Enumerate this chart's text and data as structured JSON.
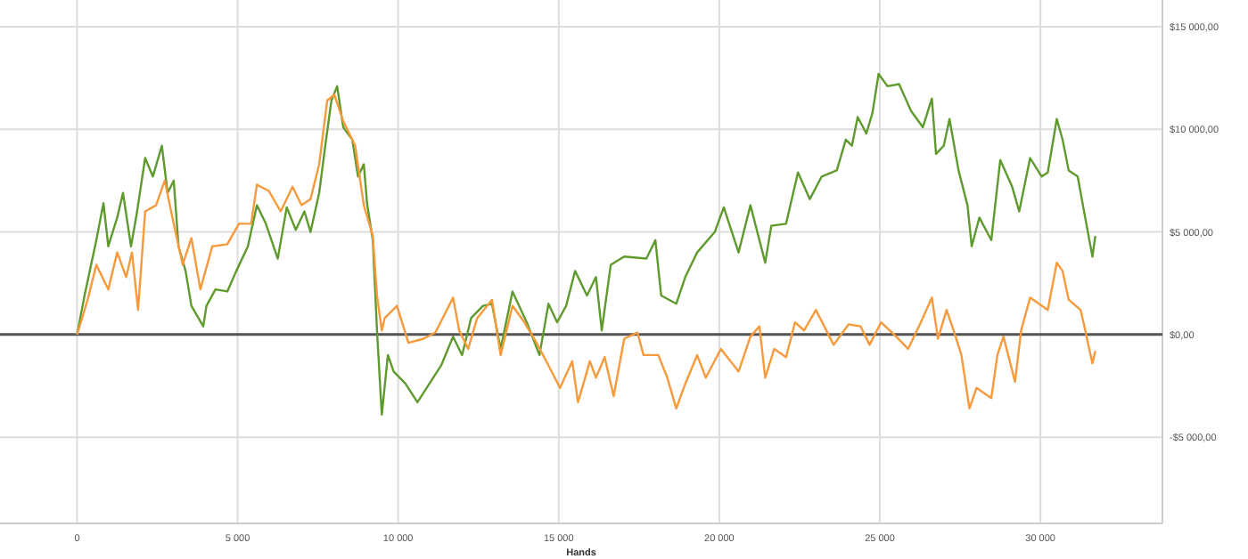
{
  "chart_data": {
    "type": "line",
    "xlabel": "Hands",
    "xlim": [
      -2400,
      33800
    ],
    "xticks": [
      {
        "value": 0,
        "label": "0"
      },
      {
        "value": 5000,
        "label": "5 000"
      },
      {
        "value": 10000,
        "label": "10 000"
      },
      {
        "value": 15000,
        "label": "15 000"
      },
      {
        "value": 20000,
        "label": "20 000"
      },
      {
        "value": 25000,
        "label": "25 000"
      },
      {
        "value": 30000,
        "label": "30 000"
      }
    ],
    "ylim": [
      -9200,
      16300
    ],
    "yticks": [
      {
        "value": -5000,
        "label": "-$5 000,00"
      },
      {
        "value": 0,
        "label": "$0,00"
      },
      {
        "value": 5000,
        "label": "$5 000,00"
      },
      {
        "value": 10000,
        "label": "$10 000,00"
      },
      {
        "value": 15000,
        "label": "$15 000,00"
      }
    ],
    "grid": true,
    "line_style": "solid",
    "marker": "none",
    "ref_lines": [
      {
        "axis": "y",
        "value": 0,
        "color": "#555555"
      }
    ],
    "series": [
      {
        "color": "#5f9a2e",
        "x": [
          0,
          233,
          600,
          822,
          972,
          1250,
          1430,
          1680,
          1860,
          2120,
          2360,
          2640,
          2820,
          3010,
          3160,
          3380,
          3560,
          3930,
          4030,
          4310,
          4680,
          4960,
          5320,
          5600,
          5880,
          6250,
          6530,
          6810,
          7080,
          7270,
          7540,
          7730,
          7920,
          8100,
          8290,
          8570,
          8750,
          8930,
          9030,
          9210,
          9340,
          9490,
          9680,
          9860,
          10230,
          10600,
          10970,
          11340,
          11710,
          11990,
          12270,
          12640,
          12920,
          13190,
          13560,
          14030,
          14400,
          14680,
          14950,
          15230,
          15510,
          15880,
          16160,
          16340,
          16620,
          17040,
          17730,
          18010,
          18190,
          18660,
          18940,
          19310,
          19860,
          20140,
          20600,
          20970,
          21430,
          21620,
          22080,
          22450,
          22820,
          23190,
          23660,
          23940,
          24130,
          24310,
          24580,
          24770,
          24960,
          25240,
          25600,
          25970,
          26340,
          26620,
          26750,
          26990,
          27170,
          27450,
          27730,
          27860,
          28100,
          28470,
          28750,
          29120,
          29340,
          29680,
          30040,
          30230,
          30510,
          30690,
          30880,
          31160,
          31430,
          31620,
          31710
        ],
        "values": [
          0,
          1900,
          4600,
          6400,
          4300,
          5700,
          6900,
          4300,
          5900,
          8600,
          7700,
          9200,
          6900,
          7500,
          4300,
          3100,
          1400,
          400,
          1400,
          2200,
          2100,
          3100,
          4300,
          6300,
          5400,
          3700,
          6200,
          5100,
          6000,
          5000,
          6900,
          9200,
          11400,
          12100,
          10100,
          9500,
          7700,
          8300,
          6400,
          4600,
          200,
          -3900,
          -1000,
          -1800,
          -2400,
          -3300,
          -2400,
          -1500,
          -100,
          -1000,
          800,
          1400,
          1500,
          -700,
          2100,
          500,
          -1000,
          1500,
          600,
          1400,
          3100,
          1900,
          2800,
          200,
          3400,
          3800,
          3700,
          4600,
          1900,
          1500,
          2800,
          4000,
          5000,
          6200,
          4000,
          6300,
          3500,
          5300,
          5400,
          7900,
          6600,
          7700,
          8000,
          9500,
          9200,
          10600,
          9800,
          10800,
          12700,
          12100,
          12200,
          10900,
          10100,
          11500,
          8800,
          9200,
          10500,
          8000,
          6300,
          4300,
          5700,
          4600,
          8500,
          7200,
          6000,
          8600,
          7700,
          7900,
          10500,
          9500,
          8000,
          7700,
          5400,
          3800,
          4800
        ]
      },
      {
        "color": "#f79a3c",
        "x": [
          0,
          330,
          600,
          972,
          1250,
          1530,
          1710,
          1900,
          2120,
          2460,
          2730,
          3010,
          3290,
          3560,
          3840,
          4210,
          4680,
          5040,
          5420,
          5600,
          5970,
          6340,
          6710,
          6990,
          7270,
          7540,
          7790,
          8010,
          8290,
          8660,
          8930,
          9210,
          9340,
          9490,
          9580,
          9960,
          10320,
          10790,
          11160,
          11710,
          11900,
          12180,
          12460,
          12920,
          13190,
          13560,
          13930,
          14310,
          14680,
          15040,
          15420,
          15600,
          15970,
          16160,
          16430,
          16710,
          17040,
          17450,
          17640,
          18100,
          18380,
          18660,
          18940,
          19310,
          19580,
          20050,
          20600,
          20970,
          21250,
          21430,
          21710,
          22080,
          22360,
          22640,
          23010,
          23560,
          24030,
          24400,
          24680,
          25040,
          25510,
          25880,
          26250,
          26620,
          26810,
          27080,
          27360,
          27540,
          27790,
          28010,
          28470,
          28660,
          28850,
          29210,
          29400,
          29680,
          30230,
          30510,
          30690,
          30880,
          31250,
          31340,
          31620,
          31710
        ],
        "values": [
          0,
          1700,
          3400,
          2200,
          4000,
          2800,
          4000,
          1200,
          6000,
          6300,
          7500,
          5400,
          3400,
          4700,
          2200,
          4300,
          4400,
          5400,
          5400,
          7300,
          7000,
          6000,
          7200,
          6300,
          6600,
          8300,
          11400,
          11700,
          10400,
          9200,
          6300,
          4800,
          1900,
          200,
          800,
          1400,
          -400,
          -200,
          100,
          1800,
          200,
          -700,
          800,
          1700,
          -1000,
          1400,
          600,
          -400,
          -1500,
          -2600,
          -1300,
          -3300,
          -1300,
          -2100,
          -1100,
          -3000,
          -200,
          100,
          -1000,
          -1000,
          -2100,
          -3600,
          -2400,
          -1000,
          -2100,
          -700,
          -1800,
          -100,
          400,
          -2100,
          -700,
          -1100,
          600,
          200,
          1200,
          -500,
          500,
          400,
          -500,
          600,
          -100,
          -700,
          500,
          1800,
          -200,
          1200,
          -100,
          -1000,
          -3600,
          -2600,
          -3100,
          -1000,
          -100,
          -2300,
          200,
          1800,
          1200,
          3500,
          3100,
          1700,
          1200,
          600,
          -1400,
          -800
        ]
      }
    ]
  }
}
